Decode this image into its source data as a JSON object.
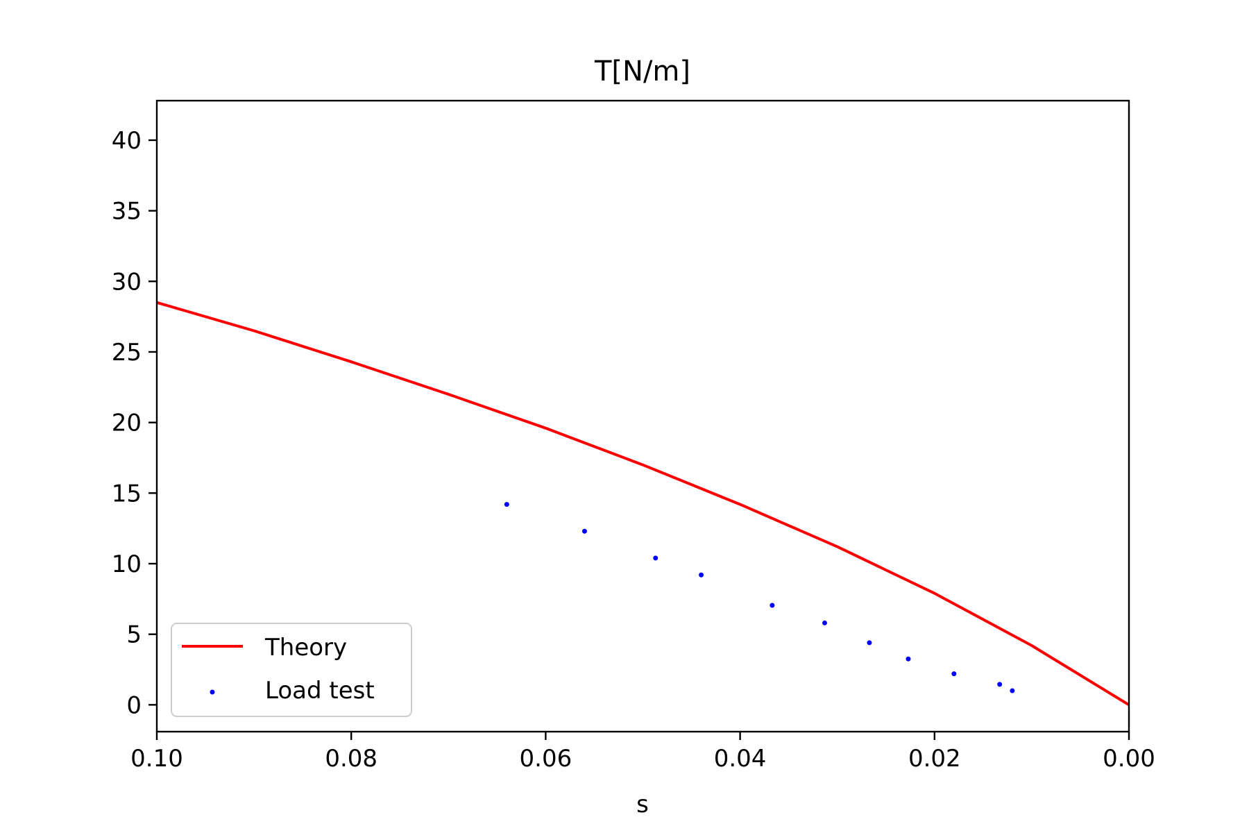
{
  "chart_data": {
    "type": "line",
    "title": "T[N/m]",
    "xlabel": "s",
    "ylabel": "",
    "xlim": [
      0.1,
      0.0
    ],
    "ylim": [
      -1.9,
      42.8
    ],
    "x_inverted": true,
    "grid": false,
    "legend_position": "lower-left",
    "xticks": [
      "0.10",
      "0.08",
      "0.06",
      "0.04",
      "0.02",
      "0.00"
    ],
    "xtick_values": [
      0.1,
      0.08,
      0.06,
      0.04,
      0.02,
      0.0
    ],
    "yticks": [
      "0",
      "5",
      "10",
      "15",
      "20",
      "25",
      "30",
      "35",
      "40"
    ],
    "ytick_values": [
      0,
      5,
      10,
      15,
      20,
      25,
      30,
      35,
      40
    ],
    "series": [
      {
        "name": "Theory",
        "kind": "line",
        "color": "#ff0000",
        "x": [
          0.1,
          0.09,
          0.08,
          0.07,
          0.06,
          0.05,
          0.04,
          0.03,
          0.02,
          0.01,
          0.0
        ],
        "y": [
          28.5,
          26.5,
          24.3,
          22.0,
          19.6,
          17.0,
          14.2,
          11.2,
          7.9,
          4.2,
          0.0
        ]
      },
      {
        "name": "Load test",
        "kind": "scatter",
        "color": "#0000ff",
        "x": [
          0.064,
          0.056,
          0.0487,
          0.044,
          0.0367,
          0.0313,
          0.0267,
          0.0227,
          0.018,
          0.0133,
          0.012
        ],
        "y": [
          14.2,
          12.3,
          10.4,
          9.2,
          7.05,
          5.8,
          4.4,
          3.25,
          2.2,
          1.45,
          1.0
        ]
      }
    ]
  }
}
